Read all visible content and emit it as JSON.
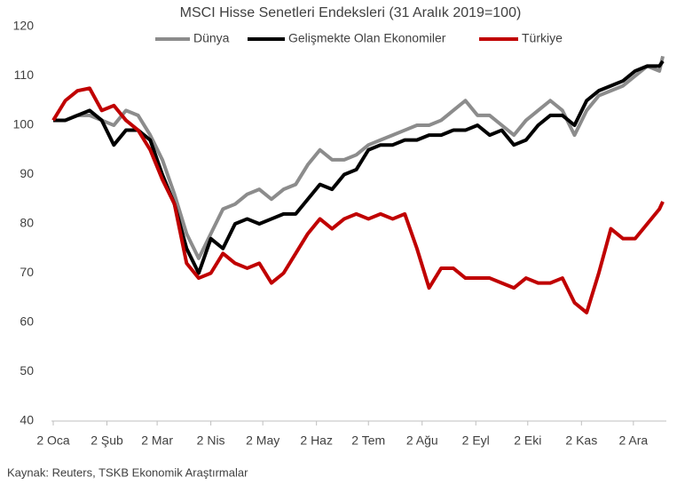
{
  "chart_data": {
    "type": "line",
    "title": "MSCI Hisse Senetleri Endeksleri (31 Aralık 2019=100)",
    "source": "Kaynak: Reuters, TSKB Ekonomik Araştırmalar",
    "x": [
      0,
      7,
      14,
      21,
      28,
      35,
      42,
      49,
      56,
      63,
      70,
      77,
      84,
      91,
      98,
      105,
      112,
      119,
      126,
      133,
      140,
      147,
      154,
      161,
      168,
      175,
      182,
      189,
      196,
      203,
      210,
      217,
      224,
      231,
      238,
      245,
      252,
      259,
      266,
      273,
      280,
      287,
      294,
      301,
      308,
      315,
      322,
      329,
      336,
      343,
      350,
      352
    ],
    "series": [
      {
        "name": "Dünya",
        "color": "#8c8c8c",
        "values": [
          101,
          101,
          102,
          102,
          101,
          100,
          103,
          102,
          98,
          93,
          86,
          78,
          73,
          78,
          83,
          84,
          86,
          87,
          85,
          87,
          88,
          92,
          95,
          93,
          93,
          94,
          96,
          97,
          98,
          99,
          100,
          100,
          101,
          103,
          105,
          102,
          102,
          100,
          98,
          101,
          103,
          105,
          103,
          98,
          103,
          106,
          107,
          108,
          110,
          112,
          111,
          114
        ]
      },
      {
        "name": "Gelişmekte Olan Ekonomiler",
        "color": "#000000",
        "values": [
          101,
          101,
          102,
          103,
          101,
          96,
          99,
          99,
          97,
          90,
          84,
          75,
          70,
          77,
          75,
          80,
          81,
          80,
          81,
          82,
          82,
          85,
          88,
          87,
          90,
          91,
          95,
          96,
          96,
          97,
          97,
          98,
          98,
          99,
          99,
          100,
          98,
          99,
          96,
          97,
          100,
          102,
          102,
          100,
          105,
          107,
          108,
          109,
          111,
          112,
          112,
          113
        ]
      },
      {
        "name": "Türkiye",
        "color": "#c00000",
        "values": [
          101,
          105,
          107,
          107.5,
          103,
          104,
          101,
          99,
          95,
          89,
          84,
          72,
          69,
          70,
          74,
          72,
          71,
          72,
          68,
          70,
          74,
          78,
          81,
          79,
          81,
          82,
          81,
          82,
          81,
          82,
          75,
          67,
          71,
          71,
          69,
          69,
          69,
          68,
          67,
          69,
          68,
          68,
          69,
          64,
          62,
          70,
          79,
          77,
          77,
          80,
          83,
          84.5
        ]
      }
    ],
    "xlim": [
      0,
      353
    ],
    "xticks": [
      {
        "value": 0,
        "label": "2 Oca"
      },
      {
        "value": 31,
        "label": "2 Şub"
      },
      {
        "value": 60,
        "label": "2 Mar"
      },
      {
        "value": 91,
        "label": "2 Nis"
      },
      {
        "value": 121,
        "label": "2 May"
      },
      {
        "value": 152,
        "label": "2 Haz"
      },
      {
        "value": 182,
        "label": "2 Tem"
      },
      {
        "value": 213,
        "label": "2 Ağu"
      },
      {
        "value": 244,
        "label": "2 Eyl"
      },
      {
        "value": 274,
        "label": "2 Eki"
      },
      {
        "value": 305,
        "label": "2 Kas"
      },
      {
        "value": 335,
        "label": "2 Ara"
      }
    ],
    "ylim": [
      40,
      120
    ],
    "yticks": [
      40,
      50,
      60,
      70,
      80,
      90,
      100,
      110,
      120
    ],
    "grid": false,
    "legend": "top"
  }
}
